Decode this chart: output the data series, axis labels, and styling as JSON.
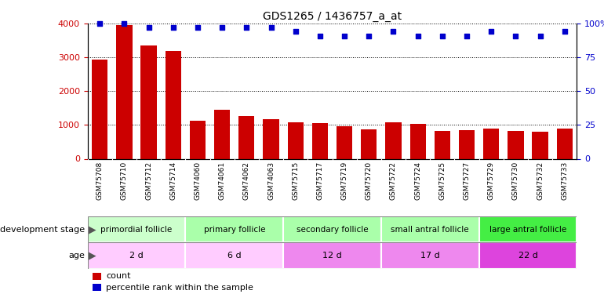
{
  "title": "GDS1265 / 1436757_a_at",
  "samples": [
    "GSM75708",
    "GSM75710",
    "GSM75712",
    "GSM75714",
    "GSM74060",
    "GSM74061",
    "GSM74062",
    "GSM74063",
    "GSM75715",
    "GSM75717",
    "GSM75719",
    "GSM75720",
    "GSM75722",
    "GSM75724",
    "GSM75725",
    "GSM75727",
    "GSM75729",
    "GSM75730",
    "GSM75732",
    "GSM75733"
  ],
  "counts": [
    2930,
    3960,
    3360,
    3200,
    1120,
    1440,
    1270,
    1180,
    1080,
    1060,
    960,
    870,
    1080,
    1040,
    830,
    840,
    900,
    830,
    800,
    900
  ],
  "percentile": [
    100,
    100,
    97,
    97,
    97,
    97,
    97,
    97,
    94,
    91,
    91,
    91,
    94,
    91,
    91,
    91,
    94,
    91,
    91,
    94
  ],
  "bar_color": "#cc0000",
  "dot_color": "#0000cc",
  "ylim_left": [
    0,
    4000
  ],
  "ylim_right": [
    0,
    100
  ],
  "yticks_left": [
    0,
    1000,
    2000,
    3000,
    4000
  ],
  "yticks_right": [
    0,
    25,
    50,
    75,
    100
  ],
  "groups": [
    {
      "label": "primordial follicle",
      "start": 0,
      "end": 4,
      "color": "#ccffcc"
    },
    {
      "label": "primary follicle",
      "start": 4,
      "end": 8,
      "color": "#ccffcc"
    },
    {
      "label": "secondary follicle",
      "start": 8,
      "end": 12,
      "color": "#aaffaa"
    },
    {
      "label": "small antral follicle",
      "start": 12,
      "end": 16,
      "color": "#aaffaa"
    },
    {
      "label": "large antral follicle",
      "start": 16,
      "end": 20,
      "color": "#44ee44"
    }
  ],
  "ages": [
    {
      "label": "2 d",
      "start": 0,
      "end": 4,
      "color": "#ffccff"
    },
    {
      "label": "6 d",
      "start": 4,
      "end": 8,
      "color": "#ffccff"
    },
    {
      "label": "12 d",
      "start": 8,
      "end": 12,
      "color": "#ee88ee"
    },
    {
      "label": "17 d",
      "start": 12,
      "end": 16,
      "color": "#ee88ee"
    },
    {
      "label": "22 d",
      "start": 16,
      "end": 20,
      "color": "#dd55dd"
    }
  ],
  "dev_stage_label": "development stage",
  "age_label": "age",
  "legend_count_label": "count",
  "legend_pct_label": "percentile rank within the sample",
  "bar_color_label": "#cc0000",
  "dot_color_label": "#0000cc",
  "xtick_bg_color": "#cccccc"
}
